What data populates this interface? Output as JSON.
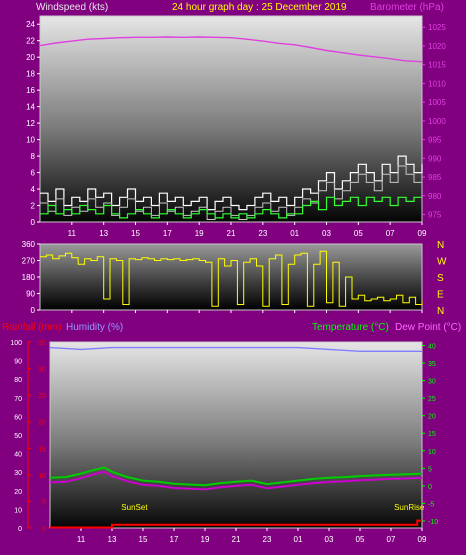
{
  "chart_data": [
    {
      "type": "line",
      "title": "24 hour graph day : 25 December 2019",
      "left_axis_label": "Windspeed (kts)",
      "right_axis_label": "Barometer (hPa)",
      "x_ticks": [
        "11",
        "13",
        "15",
        "17",
        "19",
        "21",
        "23",
        "01",
        "03",
        "05",
        "07",
        "09"
      ],
      "y_left_ticks": [
        "0",
        "2",
        "4",
        "6",
        "8",
        "10",
        "12",
        "14",
        "16",
        "18",
        "20",
        "22",
        "24"
      ],
      "y_left_range": [
        0,
        25
      ],
      "y_right_ticks": [
        "975",
        "980",
        "985",
        "990",
        "995",
        "1000",
        "1005",
        "1010",
        "1015",
        "1020",
        "1025"
      ],
      "y_right_range": [
        973,
        1028
      ],
      "colors": {
        "barometer": "#e040e0",
        "gust": "#ffffff",
        "avg": "#c8c8c8",
        "wind_green": "#33ff33",
        "title": "#ffff00",
        "right_label": "#e040e0"
      },
      "series": [
        {
          "key": "barometer",
          "x": [
            0,
            1,
            2,
            3,
            4,
            5,
            6,
            7,
            8,
            9,
            10,
            11,
            12,
            13,
            14,
            15,
            16,
            17,
            18,
            19,
            20,
            21,
            22,
            23,
            24
          ],
          "y": [
            1020.1,
            1020.8,
            1021.3,
            1021.8,
            1022.0,
            1022.2,
            1022.3,
            1022.3,
            1022.4,
            1022.3,
            1022.4,
            1022.3,
            1022.2,
            1021.8,
            1021.3,
            1020.7,
            1020.3,
            1019.6,
            1018.8,
            1018.2,
            1017.6,
            1017.1,
            1016.6,
            1016.0,
            1015.8
          ]
        },
        {
          "key": "gust",
          "x": [
            0,
            0.5,
            1,
            1.5,
            2,
            2.5,
            3,
            3.5,
            4,
            4.5,
            5,
            5.5,
            6,
            6.5,
            7,
            7.5,
            8,
            8.5,
            9,
            9.5,
            10,
            10.5,
            11,
            11.5,
            12,
            12.5,
            13,
            13.5,
            14,
            14.5,
            15,
            15.5,
            16,
            16.5,
            17,
            17.5,
            18,
            18.5,
            19,
            19.5,
            20,
            20.5,
            21,
            21.5,
            22,
            22.5,
            23,
            23.5,
            24
          ],
          "y": [
            3.5,
            2.5,
            4,
            2,
            3,
            2.5,
            4,
            3,
            3.5,
            2,
            3,
            4,
            2.5,
            3,
            2,
            3.5,
            2.5,
            3,
            2,
            2.5,
            3,
            1.5,
            2.5,
            3,
            2,
            1.5,
            2,
            3,
            3.5,
            2.5,
            3,
            2,
            3,
            4,
            3.5,
            5,
            6,
            4,
            5,
            6,
            7,
            6,
            5,
            7,
            6,
            8,
            7,
            6,
            7
          ]
        },
        {
          "key": "wind_green",
          "x": [
            0,
            0.5,
            1,
            1.5,
            2,
            2.5,
            3,
            3.5,
            4,
            4.5,
            5,
            5.5,
            6,
            6.5,
            7,
            7.5,
            8,
            8.5,
            9,
            9.5,
            10,
            10.5,
            11,
            11.5,
            12,
            12.5,
            13,
            13.5,
            14,
            14.5,
            15,
            15.5,
            16,
            16.5,
            17,
            17.5,
            18,
            18.5,
            19,
            19.5,
            20,
            20.5,
            21,
            21.5,
            22,
            22.5,
            23,
            23.5,
            24
          ],
          "y": [
            1,
            2,
            1,
            1.5,
            1,
            2,
            1.5,
            1,
            2,
            1,
            0.5,
            1,
            1.5,
            1,
            0.5,
            1,
            1.5,
            1,
            0.5,
            1,
            1.5,
            1,
            0.5,
            1,
            0.5,
            1,
            0.5,
            1,
            1.5,
            1,
            0.5,
            1,
            1,
            2,
            2.5,
            1.5,
            3,
            2,
            2.5,
            3,
            2,
            3,
            2.5,
            3,
            2,
            3,
            2.5,
            3,
            3
          ]
        }
      ]
    },
    {
      "type": "line",
      "y_left_ticks": [
        "0",
        "90",
        "180",
        "270",
        "360"
      ],
      "y_range": [
        0,
        360
      ],
      "compass_labels": [
        "N",
        "W",
        "S",
        "E",
        "N"
      ],
      "x_ticks": [
        "11",
        "13",
        "15",
        "17",
        "19",
        "21",
        "23",
        "01",
        "03",
        "05",
        "07",
        "09"
      ],
      "colors": {
        "direction": "#ffff00",
        "compass": "#ffff00"
      },
      "series": [
        {
          "key": "direction",
          "x": [
            0,
            0.4,
            0.8,
            1.2,
            1.6,
            2,
            2.4,
            2.8,
            3.2,
            3.6,
            4,
            4.4,
            4.8,
            5.2,
            5.6,
            6,
            6.4,
            6.8,
            7.2,
            7.6,
            8,
            8.4,
            8.8,
            9.2,
            9.6,
            10,
            10.4,
            10.8,
            11.2,
            11.6,
            12,
            12.4,
            12.8,
            13.2,
            13.6,
            14,
            14.4,
            14.8,
            15.2,
            15.6,
            16,
            16.4,
            16.8,
            17.2,
            17.6,
            18,
            18.4,
            18.8,
            19.2,
            19.6,
            20,
            20.4,
            20.8,
            21.2,
            21.6,
            22,
            22.4,
            22.8,
            23.2,
            23.6,
            24
          ],
          "y": [
            290,
            300,
            280,
            295,
            310,
            285,
            250,
            280,
            270,
            290,
            60,
            280,
            270,
            30,
            280,
            275,
            285,
            280,
            270,
            280,
            275,
            280,
            270,
            275,
            280,
            270,
            260,
            20,
            280,
            240,
            270,
            30,
            260,
            280,
            240,
            20,
            280,
            300,
            30,
            250,
            300,
            310,
            20,
            250,
            320,
            40,
            260,
            20,
            180,
            60,
            80,
            50,
            60,
            70,
            50,
            60,
            80,
            40,
            70,
            30,
            50
          ]
        }
      ]
    },
    {
      "type": "line",
      "left_axis_label": "Rainfall (mm)",
      "mid_axis_label": "Humidity (%)",
      "right_axis_label_1": "Temperature (°C)",
      "right_axis_label_2": "Dew Point (°C)",
      "x_ticks": [
        "11",
        "13",
        "15",
        "17",
        "19",
        "21",
        "23",
        "01",
        "03",
        "05",
        "07",
        "09"
      ],
      "y_humidity_ticks": [
        "0",
        "10",
        "20",
        "30",
        "40",
        "50",
        "60",
        "70",
        "80",
        "90",
        "100"
      ],
      "y_humidity_range": [
        0,
        100
      ],
      "y_rain_ticks": [
        "0",
        "5",
        "10",
        "15",
        "20",
        "25",
        "30",
        "35"
      ],
      "y_rain_range": [
        0,
        35
      ],
      "y_temp_ticks": [
        "-10",
        "-5",
        "0",
        "5",
        "10",
        "15",
        "20",
        "25",
        "30",
        "35",
        "40"
      ],
      "y_temp_range": [
        -12,
        41
      ],
      "annotations": [
        "SunSet",
        "SunRise"
      ],
      "colors": {
        "humidity": "#8080ff",
        "temperature": "#00cc00",
        "dewpoint": "#cc00cc",
        "rainfall": "#ff0000",
        "rain_label": "#ff0000",
        "humidity_label": "#9999ff",
        "temp_label": "#00ff00",
        "dew_label": "#ff66ff",
        "temp_ticks": "#00ff00",
        "annotation": "#ffff00"
      },
      "series": [
        {
          "key": "humidity",
          "x": [
            0,
            2,
            4,
            6,
            8,
            10,
            12,
            14,
            16,
            18,
            20,
            22,
            24
          ],
          "y": [
            97,
            96,
            97,
            97,
            97,
            97,
            97,
            97,
            97,
            96,
            95,
            95,
            95
          ]
        },
        {
          "key": "temperature",
          "x": [
            0,
            1,
            2,
            2.8,
            3.5,
            4,
            5,
            6,
            7,
            8,
            9,
            10,
            11,
            12,
            13,
            14,
            15,
            16,
            17,
            18,
            19,
            20,
            21,
            22,
            23,
            24
          ],
          "y": [
            2.3,
            2.5,
            3.5,
            4.5,
            5.2,
            4,
            2.5,
            1.5,
            1.2,
            0.6,
            0.4,
            0.2,
            0.8,
            1.2,
            1.5,
            0.5,
            1,
            1.5,
            2,
            2.3,
            2.5,
            2.8,
            3,
            3.2,
            3.3,
            3.5
          ]
        },
        {
          "key": "dewpoint",
          "x": [
            0,
            1,
            2,
            2.8,
            3.5,
            4,
            5,
            6,
            7,
            8,
            9,
            10,
            11,
            12,
            13,
            14,
            15,
            16,
            17,
            18,
            19,
            20,
            21,
            22,
            23,
            24
          ],
          "y": [
            1,
            1.2,
            2.2,
            3.3,
            4,
            2.8,
            1.3,
            0.3,
            0,
            -0.6,
            -0.8,
            -1,
            -0.4,
            0,
            0.3,
            -0.7,
            -0.2,
            0.3,
            0.8,
            1.1,
            1.3,
            1.6,
            1.8,
            2,
            2.1,
            2.3
          ]
        },
        {
          "key": "rainfall",
          "x": [
            0,
            3.8,
            4,
            23.5,
            23.7,
            24
          ],
          "y": [
            0.1,
            0.1,
            0.6,
            0.6,
            1.4,
            1.4
          ]
        }
      ]
    }
  ]
}
